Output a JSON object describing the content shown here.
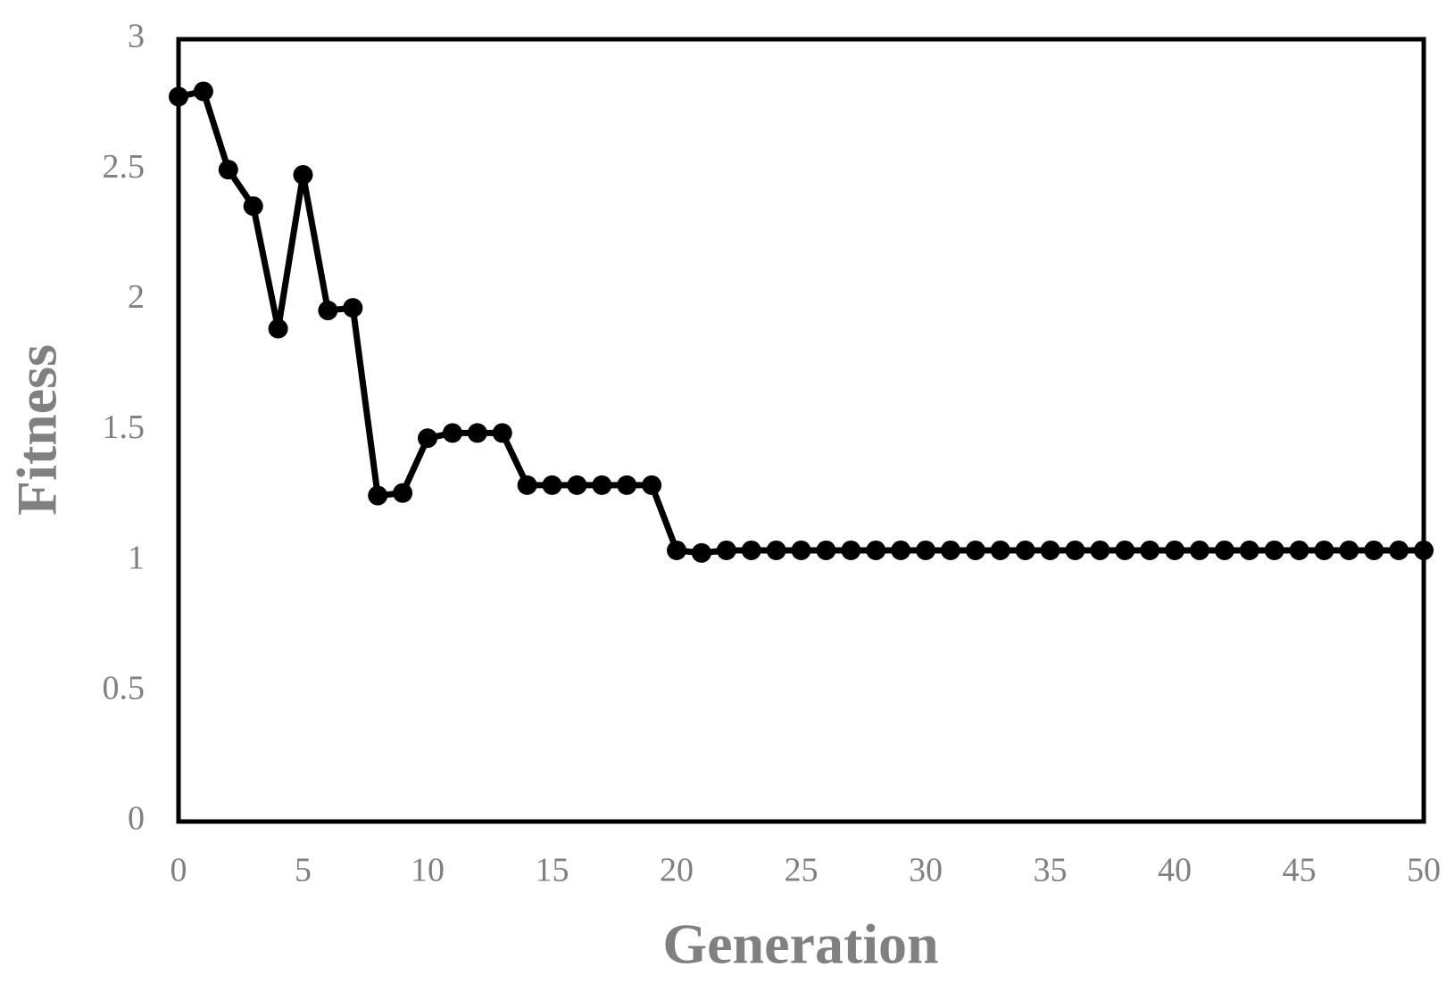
{
  "chart_data": {
    "type": "line",
    "x_label": "Generation",
    "y_label": "Fitness",
    "x": [
      0,
      1,
      2,
      3,
      4,
      5,
      6,
      7,
      8,
      9,
      10,
      11,
      12,
      13,
      14,
      15,
      16,
      17,
      18,
      19,
      20,
      21,
      22,
      23,
      24,
      25,
      26,
      27,
      28,
      29,
      30,
      31,
      32,
      33,
      34,
      35,
      36,
      37,
      38,
      39,
      40,
      41,
      42,
      43,
      44,
      45,
      46,
      47,
      48,
      49,
      50
    ],
    "series": [
      {
        "name": "Fitness",
        "color": "#000000",
        "values": [
          2.78,
          2.8,
          2.5,
          2.36,
          1.89,
          2.48,
          1.96,
          1.97,
          1.25,
          1.26,
          1.47,
          1.49,
          1.49,
          1.49,
          1.29,
          1.29,
          1.29,
          1.29,
          1.29,
          1.29,
          1.04,
          1.03,
          1.04,
          1.04,
          1.04,
          1.04,
          1.04,
          1.04,
          1.04,
          1.04,
          1.04,
          1.04,
          1.04,
          1.04,
          1.04,
          1.04,
          1.04,
          1.04,
          1.04,
          1.04,
          1.04,
          1.04,
          1.04,
          1.04,
          1.04,
          1.04,
          1.04,
          1.04,
          1.04,
          1.04,
          1.04
        ]
      }
    ],
    "xlim": [
      0,
      50
    ],
    "xticks": [
      0,
      5,
      10,
      15,
      20,
      25,
      30,
      35,
      40,
      45,
      50
    ],
    "ylim": [
      0,
      3
    ],
    "yticks": [
      0,
      0.5,
      1,
      1.5,
      2,
      2.5,
      3
    ],
    "grid": false
  }
}
